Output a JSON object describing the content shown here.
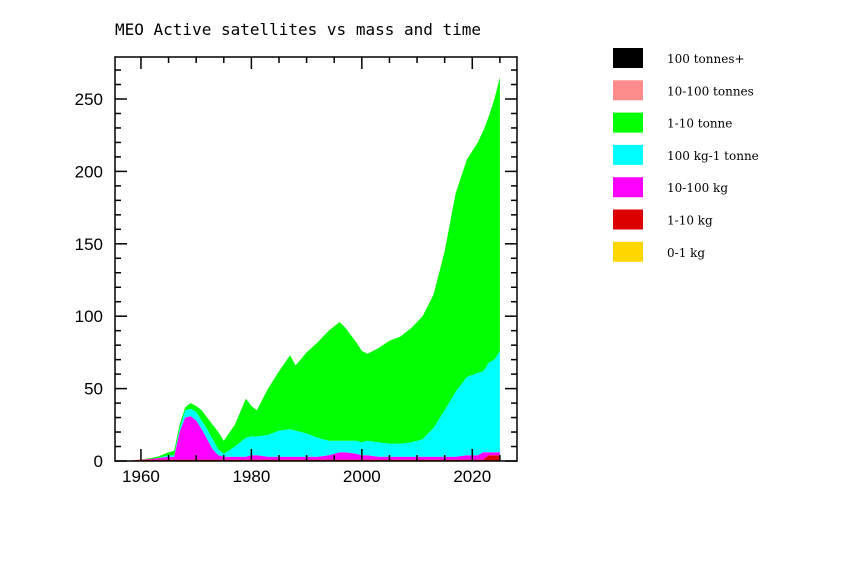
{
  "chart_data": {
    "type": "area",
    "stacked": true,
    "title": "MEO Active satellites vs mass and time",
    "xlabel": "",
    "ylabel": "",
    "xlim": [
      1955.3,
      2028.1
    ],
    "ylim": [
      0,
      279
    ],
    "xticks": [
      1960,
      1980,
      2000,
      2020
    ],
    "yticks": [
      0,
      50,
      100,
      150,
      200,
      250
    ],
    "legend_position": "right",
    "x": [
      1957,
      1960,
      1963,
      1965,
      1966,
      1967,
      1968,
      1969,
      1970,
      1971,
      1972,
      1973,
      1974,
      1975,
      1977,
      1979,
      1980,
      1981,
      1983,
      1985,
      1987,
      1988,
      1990,
      1992,
      1994,
      1996,
      1997,
      1999,
      2000,
      2001,
      2003,
      2005,
      2007,
      2009,
      2011,
      2013,
      2015,
      2017,
      2019,
      2021,
      2022,
      2023,
      2024,
      2025
    ],
    "series": [
      {
        "name": "0-1 kg",
        "color": "#ffd700",
        "values": [
          0,
          0,
          0,
          0,
          0,
          0,
          0,
          0,
          0,
          0,
          0,
          0,
          0,
          0,
          0,
          0,
          0,
          0,
          0,
          0,
          0,
          0,
          0,
          0,
          0,
          0,
          0,
          0,
          0,
          0,
          0,
          0,
          0,
          0,
          0,
          0,
          0,
          0,
          0,
          0,
          0,
          0,
          0,
          0
        ]
      },
      {
        "name": "1-10 kg",
        "color": "#dd0000",
        "values": [
          0,
          1,
          1,
          1,
          1,
          1,
          1,
          1,
          1,
          1,
          1,
          1,
          1,
          1,
          1,
          1,
          1,
          1,
          1,
          1,
          1,
          1,
          1,
          1,
          1,
          1,
          1,
          1,
          1,
          1,
          1,
          1,
          1,
          1,
          1,
          1,
          1,
          1,
          1,
          1,
          1,
          4,
          4,
          4
        ]
      },
      {
        "name": "10-100 kg",
        "color": "#ff00ff",
        "values": [
          0,
          0,
          1,
          2,
          2,
          19,
          29,
          30,
          27,
          21,
          14,
          7,
          3,
          2,
          2,
          2,
          3,
          3,
          2,
          2,
          2,
          2,
          2,
          2,
          3,
          5,
          5,
          4,
          3,
          3,
          2,
          2,
          2,
          2,
          2,
          2,
          2,
          2,
          3,
          3,
          5,
          2,
          2,
          2
        ]
      },
      {
        "name": "100 kg-1 tonne",
        "color": "#00ffff",
        "values": [
          0,
          0,
          0,
          1,
          1,
          2,
          5,
          5,
          6,
          6,
          7,
          7,
          4,
          2,
          7,
          13,
          13,
          13,
          15,
          18,
          19,
          18,
          16,
          13,
          10,
          8,
          8,
          9,
          9,
          10,
          10,
          9,
          9,
          10,
          12,
          20,
          32,
          45,
          54,
          57,
          56,
          62,
          64,
          70
        ]
      },
      {
        "name": "1-10 tonne",
        "color": "#00ff00",
        "values": [
          0,
          0,
          1,
          2,
          3,
          3,
          2,
          4,
          4,
          7,
          8,
          10,
          12,
          9,
          15,
          27,
          21,
          18,
          32,
          41,
          51,
          45,
          56,
          66,
          76,
          82,
          78,
          68,
          63,
          60,
          65,
          71,
          74,
          79,
          85,
          92,
          110,
          137,
          150,
          159,
          166,
          170,
          180,
          189
        ]
      },
      {
        "name": "10-100 tonnes",
        "color": "#ff8c8c",
        "values": [
          0,
          0,
          0,
          0,
          0,
          0,
          0,
          0,
          0,
          0,
          0,
          0,
          0,
          0,
          0,
          0,
          0,
          0,
          0,
          0,
          0,
          0,
          0,
          0,
          0,
          0,
          0,
          0,
          0,
          0,
          0,
          0,
          0,
          0,
          0,
          0,
          0,
          0,
          0,
          0,
          0,
          0,
          0,
          0
        ]
      },
      {
        "name": "100 tonnes+",
        "color": "#000000",
        "values": [
          0,
          0,
          0,
          0,
          0,
          0,
          0,
          0,
          0,
          0,
          0,
          0,
          0,
          0,
          0,
          0,
          0,
          0,
          0,
          0,
          0,
          0,
          0,
          0,
          0,
          0,
          0,
          0,
          0,
          0,
          0,
          0,
          0,
          0,
          0,
          0,
          0,
          0,
          0,
          0,
          0,
          0,
          0,
          0
        ]
      }
    ]
  }
}
